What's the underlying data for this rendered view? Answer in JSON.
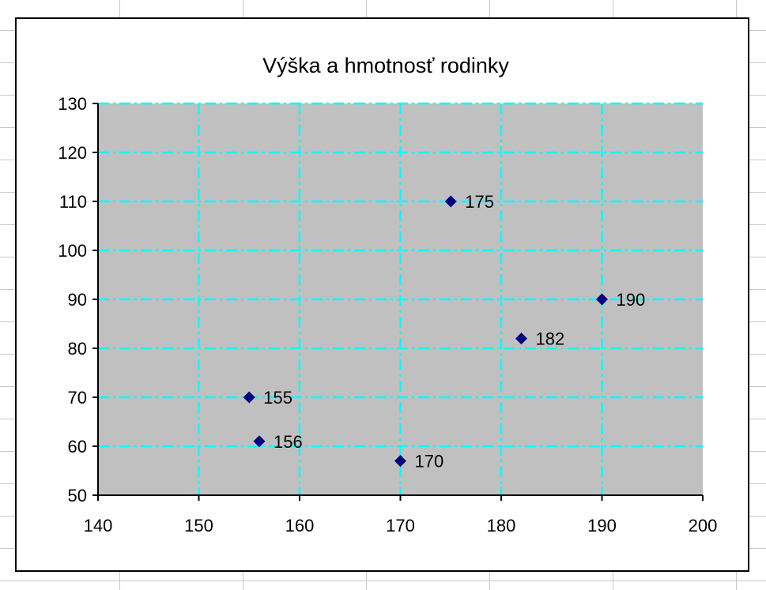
{
  "chart_data": {
    "type": "scatter",
    "title": "Výška a hmotnosť rodinky",
    "xlabel": "",
    "ylabel": "",
    "xlim": [
      140,
      200
    ],
    "ylim": [
      50,
      130
    ],
    "x_ticks": [
      140,
      150,
      160,
      170,
      180,
      190,
      200
    ],
    "y_ticks": [
      50,
      60,
      70,
      80,
      90,
      100,
      110,
      120,
      130
    ],
    "grid": true,
    "legend": "none",
    "plot_background": "#c0c0c0",
    "gridline_color": "#00ffff",
    "marker_color": "#000080",
    "marker": "diamond",
    "series": [
      {
        "points": [
          {
            "x": 155,
            "y": 70,
            "label": "155"
          },
          {
            "x": 156,
            "y": 61,
            "label": "156"
          },
          {
            "x": 170,
            "y": 57,
            "label": "170"
          },
          {
            "x": 175,
            "y": 110,
            "label": "175"
          },
          {
            "x": 182,
            "y": 82,
            "label": "182"
          },
          {
            "x": 190,
            "y": 90,
            "label": "190"
          }
        ]
      }
    ]
  }
}
